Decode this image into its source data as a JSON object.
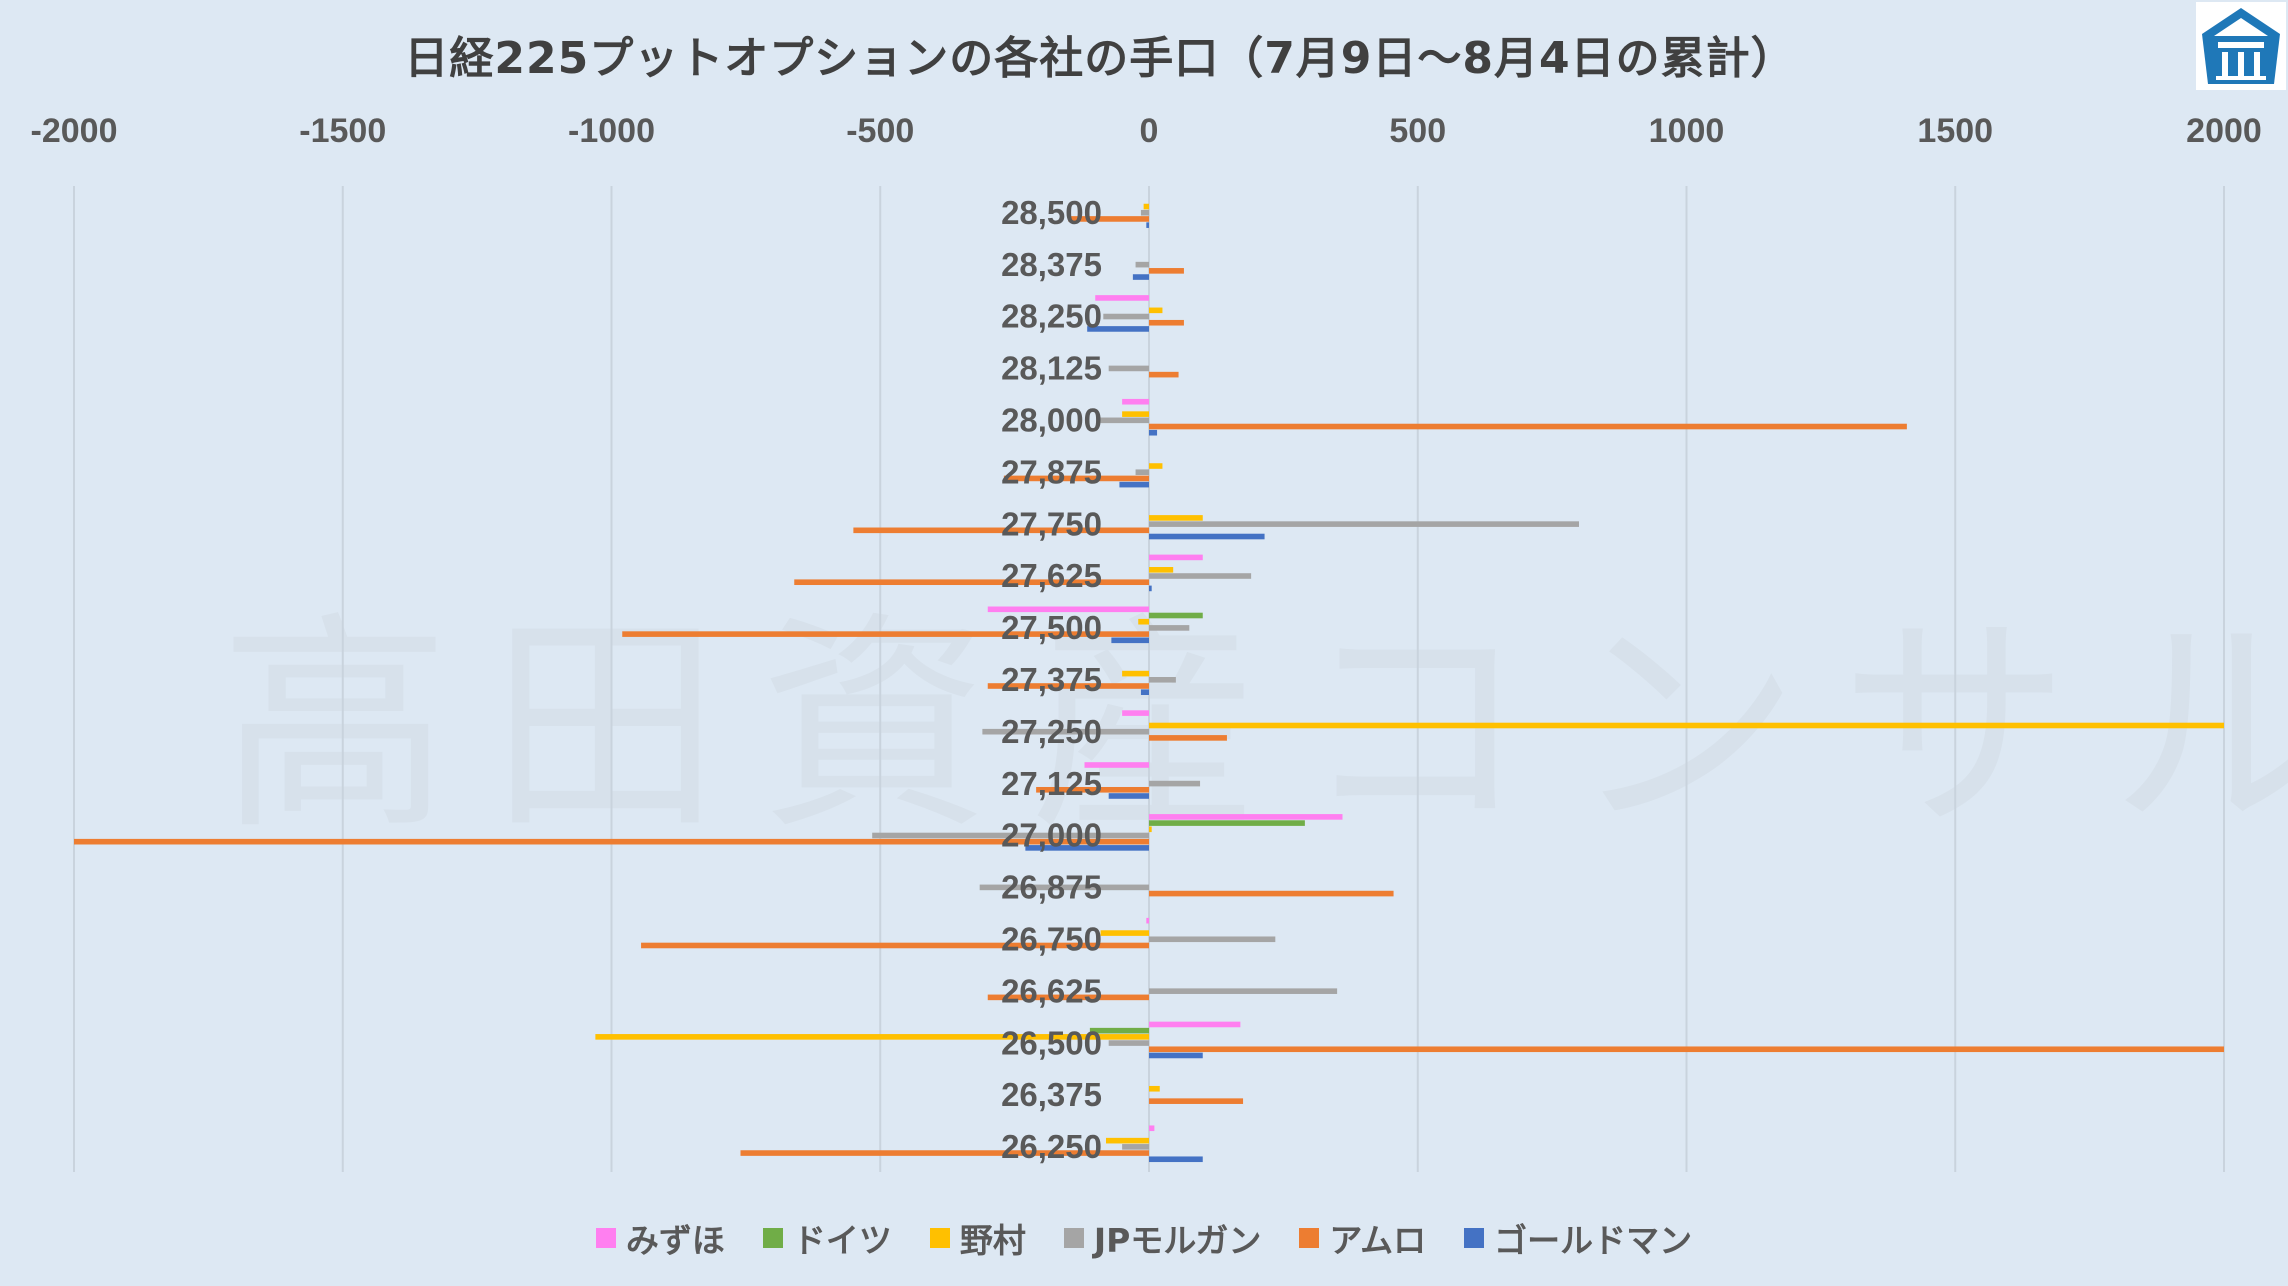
{
  "chart_data": {
    "type": "bar",
    "orientation": "horizontal",
    "title": "日経225プットオプションの各社の手口（7月9日～8月4日の累計）",
    "xlim": [
      -2000,
      2000
    ],
    "x_ticks": [
      "-2000",
      "-1500",
      "-1000",
      "-500",
      "0",
      "500",
      "1000",
      "1500",
      "2000"
    ],
    "x_tick_values": [
      -2000,
      -1500,
      -1000,
      -500,
      0,
      500,
      1000,
      1500,
      2000
    ],
    "grid": true,
    "legend_position": "bottom",
    "categories": [
      "28,500",
      "28,375",
      "28,250",
      "28,125",
      "28,000",
      "27,875",
      "27,750",
      "27,625",
      "27,500",
      "27,375",
      "27,250",
      "27,125",
      "27,000",
      "26,875",
      "26,750",
      "26,625",
      "26,500",
      "26,375",
      "26,250"
    ],
    "series": [
      {
        "name": "みずほ",
        "color": "#ff7ff0",
        "values": [
          0,
          0,
          -100,
          0,
          -50,
          0,
          0,
          100,
          -300,
          0,
          -50,
          -120,
          360,
          0,
          -5,
          0,
          170,
          0,
          10
        ]
      },
      {
        "name": "ドイツ",
        "color": "#70ad47",
        "values": [
          0,
          0,
          0,
          0,
          0,
          0,
          0,
          0,
          100,
          0,
          0,
          0,
          290,
          0,
          0,
          0,
          -110,
          0,
          0
        ]
      },
      {
        "name": "野村",
        "color": "#ffc000",
        "values": [
          -10,
          0,
          25,
          0,
          -50,
          25,
          100,
          45,
          -20,
          -50,
          2000,
          0,
          5,
          0,
          -90,
          0,
          -1030,
          20,
          -80
        ]
      },
      {
        "name": "JPモルガン",
        "color": "#a5a5a5",
        "values": [
          -15,
          -25,
          -85,
          -75,
          -90,
          -25,
          800,
          190,
          75,
          50,
          -310,
          95,
          -515,
          -315,
          235,
          350,
          -75,
          0,
          -50
        ]
      },
      {
        "name": "アムロ",
        "color": "#ed7d31",
        "values": [
          -150,
          65,
          65,
          55,
          1410,
          -270,
          -550,
          -660,
          -980,
          -300,
          145,
          -210,
          -2000,
          455,
          -945,
          -300,
          2000,
          175,
          -760
        ]
      },
      {
        "name": "ゴールドマン",
        "color": "#4472c4",
        "values": [
          -5,
          -30,
          -115,
          0,
          15,
          -55,
          215,
          5,
          -70,
          -15,
          0,
          -75,
          -230,
          0,
          0,
          0,
          100,
          0,
          100
        ]
      }
    ]
  },
  "watermark": "高田資産コンサル"
}
